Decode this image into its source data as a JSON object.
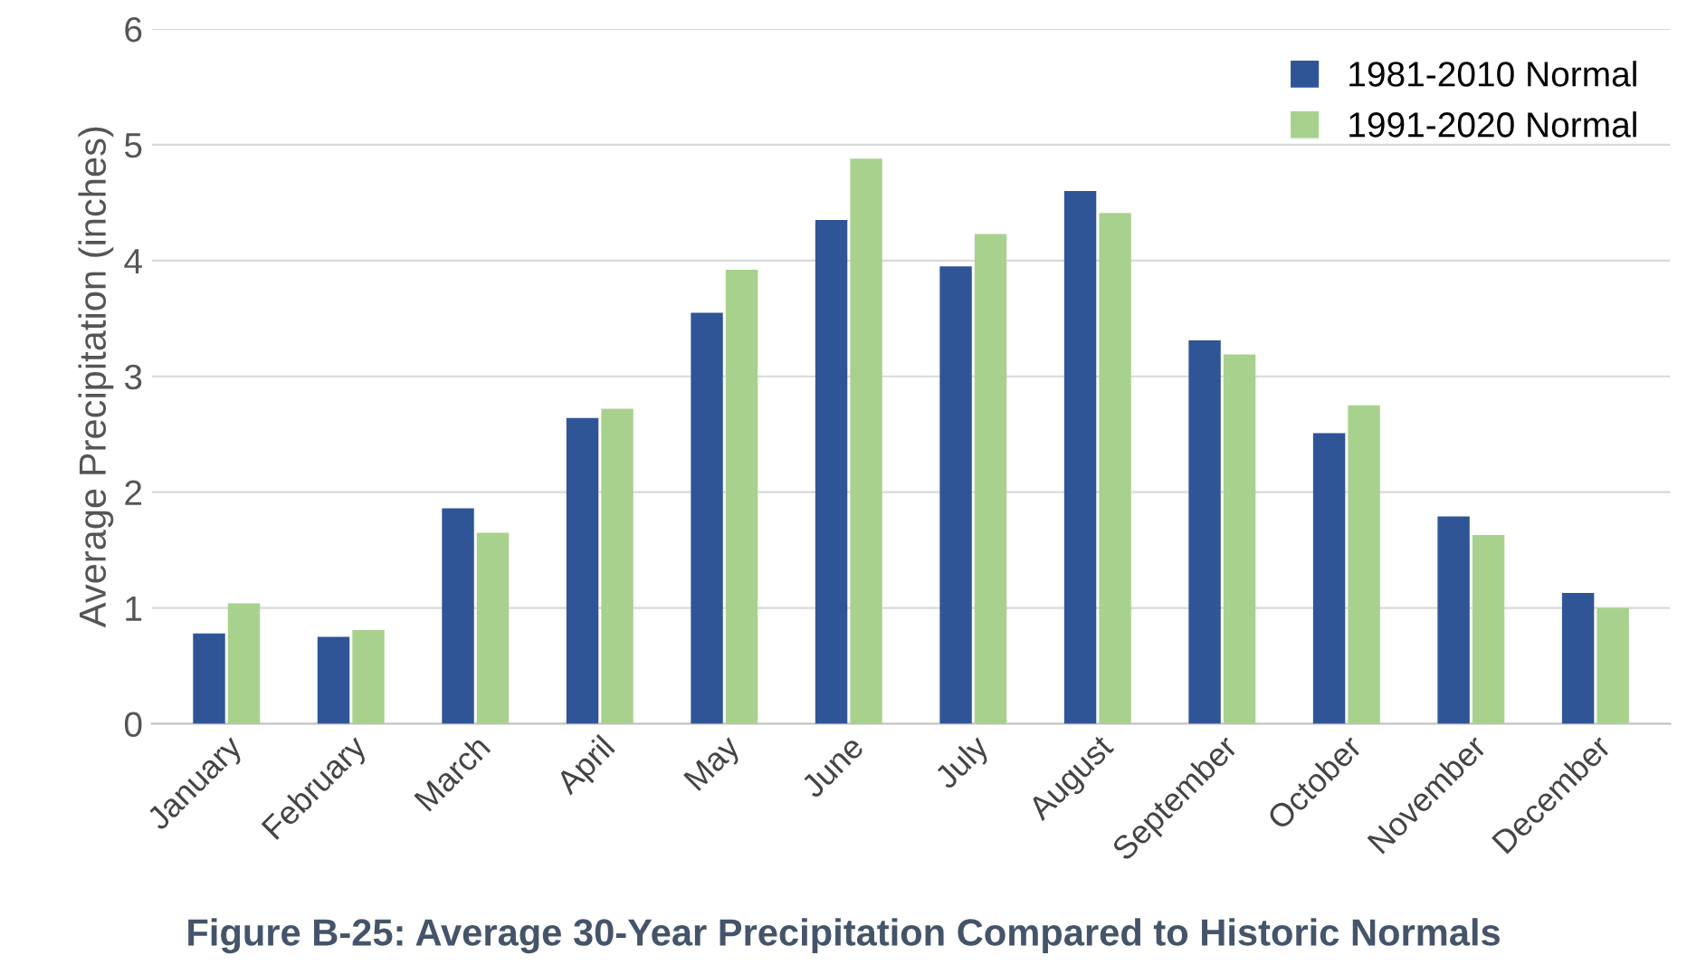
{
  "chart_data": {
    "type": "bar",
    "title": "Figure B-25: Average 30-Year Precipitation Compared to Historic Normals",
    "ylabel": "Average Precipitation (inches)",
    "categories": [
      "January",
      "February",
      "March",
      "April",
      "May",
      "June",
      "July",
      "August",
      "September",
      "October",
      "November",
      "December"
    ],
    "series": [
      {
        "name": "1981-2010 Normal",
        "color": "#2f5597",
        "values": [
          0.78,
          0.75,
          1.86,
          2.64,
          3.55,
          4.35,
          3.95,
          4.6,
          3.31,
          2.51,
          1.79,
          1.13
        ]
      },
      {
        "name": "1991-2020 Normal",
        "color": "#a9d18e",
        "values": [
          1.04,
          0.81,
          1.65,
          2.72,
          3.92,
          4.88,
          4.23,
          4.41,
          3.19,
          2.75,
          1.63,
          1.0
        ]
      }
    ],
    "ylim": [
      0,
      6
    ],
    "yticks": [
      0,
      1,
      2,
      3,
      4,
      5,
      6
    ],
    "grid": "y",
    "legend": "top right"
  }
}
